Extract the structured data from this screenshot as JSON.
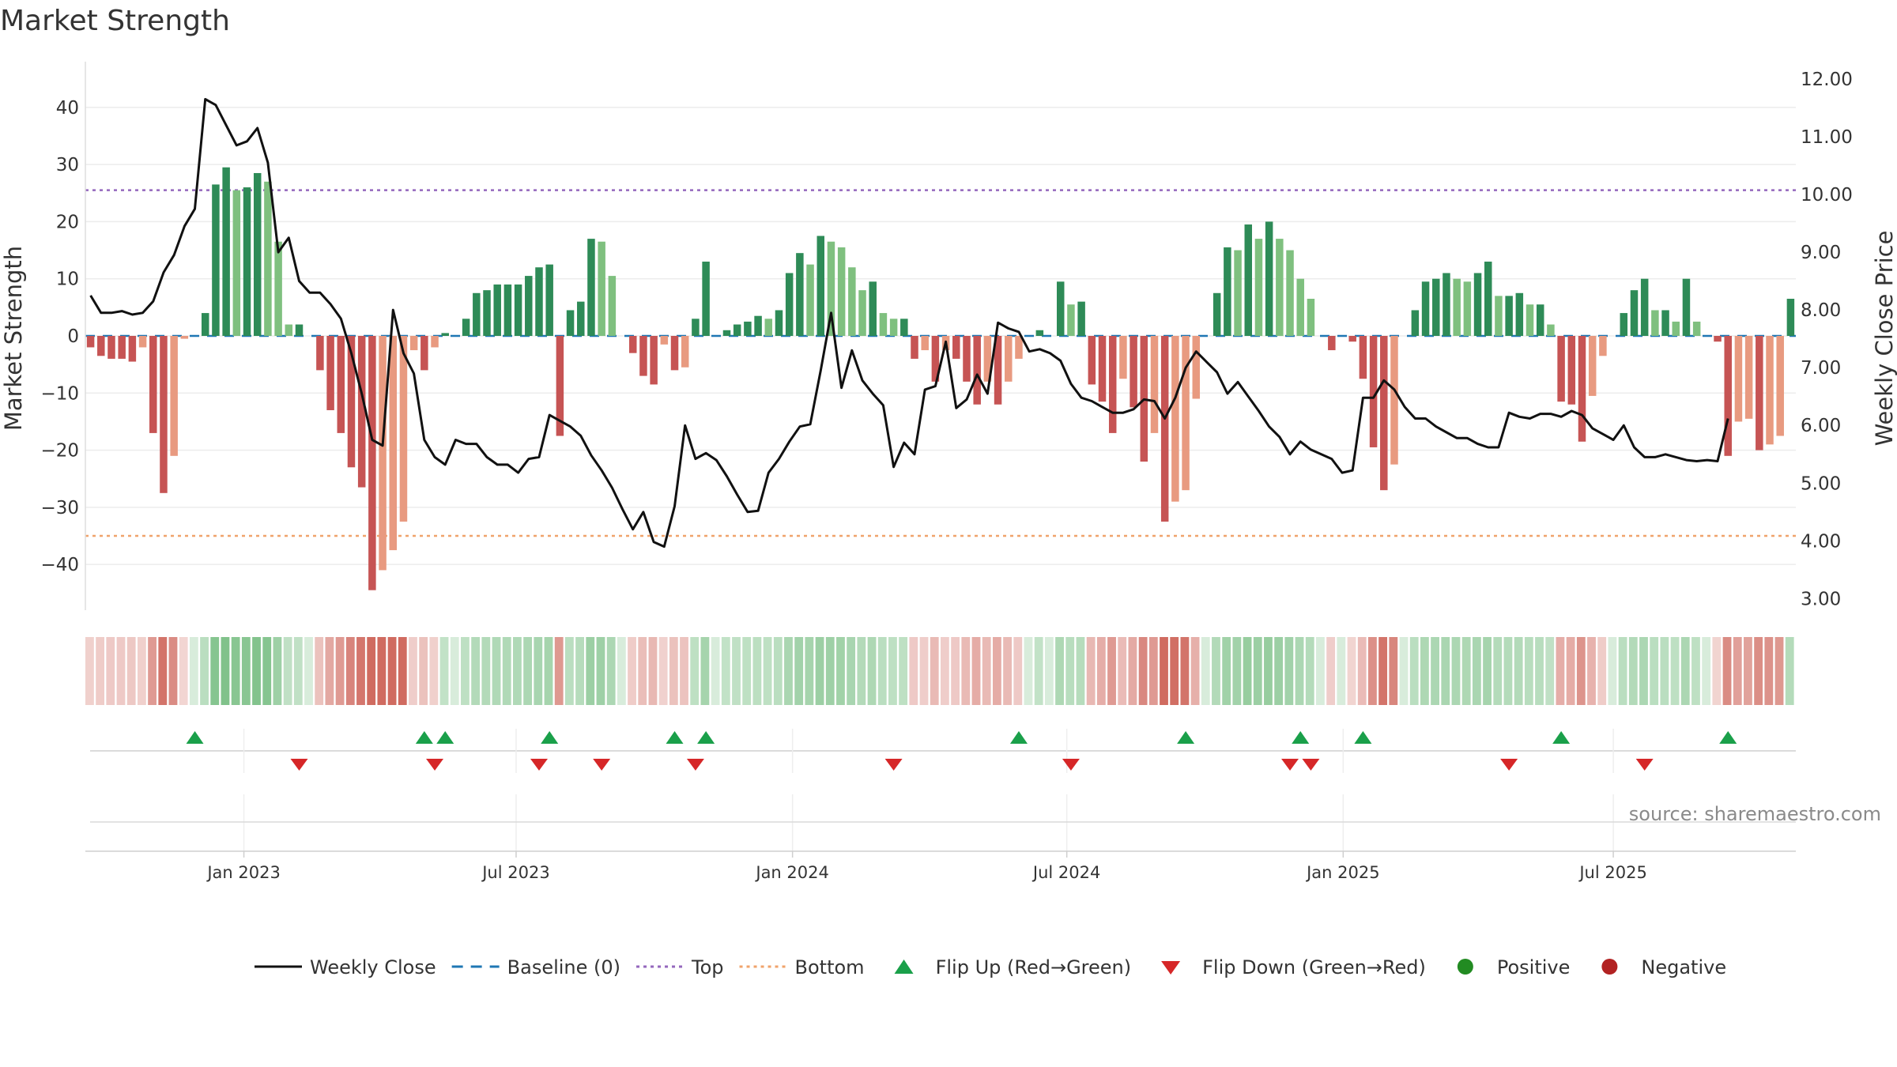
{
  "chart_data": {
    "type": "bar+line",
    "title": "Market Strength",
    "ylabel_left": "Market Strength",
    "ylabel_right": "Weekly Close Price",
    "ylim_left": [
      -48,
      48
    ],
    "ylim_right": [
      2.8,
      12.3
    ],
    "yticks_left": [
      -40,
      -30,
      -20,
      -10,
      0,
      10,
      20,
      30,
      40
    ],
    "ytick_labels_left": [
      "−40",
      "−30",
      "−20",
      "−10",
      "0",
      "10",
      "20",
      "30",
      "40"
    ],
    "yticks_right": [
      3,
      4,
      5,
      6,
      7,
      8,
      9,
      10,
      11,
      12
    ],
    "ytick_labels_right": [
      "3.00",
      "4.00",
      "5.00",
      "6.00",
      "7.00",
      "8.00",
      "9.00",
      "10.00",
      "11.00",
      "12.00"
    ],
    "x_start_week": 0,
    "x_end_week": 158,
    "xticks": [
      {
        "label": "Jan 2023",
        "week": 14.7
      },
      {
        "label": "Jul 2023",
        "week": 40.8
      },
      {
        "label": "Jan 2024",
        "week": 67.3
      },
      {
        "label": "Jul 2024",
        "week": 93.6
      },
      {
        "label": "Jan 2025",
        "week": 120.1
      },
      {
        "label": "Jul 2025",
        "week": 146.0
      }
    ],
    "top_level": 25.5,
    "bottom_level": -35,
    "baseline": 0,
    "strength": [
      -2,
      -3.5,
      -4,
      -4,
      -4.5,
      -2,
      -17,
      -27.5,
      -21,
      -0.5,
      0,
      4,
      26.5,
      29.5,
      25.5,
      26,
      28.5,
      27,
      16.5,
      2,
      2,
      0,
      -6,
      -13,
      -17,
      -23,
      -26.5,
      -44.5,
      -41,
      -37.5,
      -32.5,
      -2.5,
      -6,
      -2,
      0.5,
      0,
      3,
      7.5,
      8,
      9,
      9,
      9,
      10.5,
      12,
      12.5,
      -17.5,
      4.5,
      6,
      17,
      16.5,
      10.5,
      0,
      -3,
      -7,
      -8.5,
      -1.5,
      -6,
      -5.5,
      3,
      13,
      0,
      1,
      2,
      2.5,
      3.5,
      3,
      4.5,
      11,
      14.5,
      12.5,
      17.5,
      16.5,
      15.5,
      12,
      8,
      9.5,
      4,
      3,
      3,
      -4,
      -2.5,
      -8,
      -2.5,
      -4,
      -8,
      -12,
      -8,
      -12,
      -8,
      -4,
      0,
      1,
      0,
      9.5,
      5.5,
      6,
      -8.5,
      -11.5,
      -17,
      -7.5,
      -12.5,
      -22,
      -17,
      -32.5,
      -29,
      -27,
      -11,
      0,
      7.5,
      15.5,
      15,
      19.5,
      17,
      20,
      17,
      15,
      10,
      6.5,
      0,
      -2.5,
      0,
      -1,
      -7.5,
      -19.5,
      -27,
      -22.5,
      0,
      4.5,
      9.5,
      10,
      11,
      10,
      9.5,
      11,
      13,
      7,
      7,
      7.5,
      5.5,
      5.5,
      2,
      -11.5,
      -12,
      -18.5,
      -10.5,
      -3.5,
      0,
      4,
      8,
      10,
      4.5,
      4.5,
      2.5,
      10,
      2.5,
      0,
      -1,
      -21,
      -15,
      -14.5,
      -20,
      -19,
      -17.5,
      6.5
    ],
    "weekly_close": [
      8.25,
      7.95,
      7.95,
      7.98,
      7.92,
      7.95,
      8.15,
      8.65,
      8.95,
      9.45,
      9.75,
      11.65,
      11.55,
      11.2,
      10.85,
      10.92,
      11.15,
      10.55,
      9.0,
      9.25,
      8.5,
      8.3,
      8.3,
      8.1,
      7.85,
      7.25,
      6.55,
      5.75,
      5.65,
      8.0,
      7.25,
      6.9,
      5.75,
      5.45,
      5.32,
      5.75,
      5.68,
      5.68,
      5.45,
      5.32,
      5.32,
      5.18,
      5.42,
      5.45,
      6.18,
      6.08,
      5.98,
      5.82,
      5.48,
      5.22,
      4.92,
      4.55,
      4.2,
      4.5,
      3.98,
      3.9,
      4.6,
      6.0,
      5.42,
      5.52,
      5.4,
      5.12,
      4.8,
      4.5,
      4.52,
      5.18,
      5.42,
      5.72,
      5.98,
      6.02,
      6.95,
      7.95,
      6.65,
      7.3,
      6.78,
      6.55,
      6.35,
      5.28,
      5.7,
      5.5,
      6.62,
      6.68,
      7.45,
      6.3,
      6.45,
      6.88,
      6.55,
      7.78,
      7.68,
      7.62,
      7.28,
      7.32,
      7.25,
      7.12,
      6.72,
      6.48,
      6.42,
      6.32,
      6.22,
      6.22,
      6.28,
      6.45,
      6.42,
      6.12,
      6.48,
      7.0,
      7.28,
      7.1,
      6.92,
      6.55,
      6.75,
      6.5,
      6.25,
      5.98,
      5.8,
      5.5,
      5.72,
      5.58,
      5.5,
      5.42,
      5.18,
      5.22,
      6.48,
      6.48,
      6.78,
      6.62,
      6.32,
      6.12,
      6.12,
      5.98,
      5.88,
      5.78,
      5.78,
      5.68,
      5.62,
      5.62,
      6.22,
      6.15,
      6.12,
      6.2,
      6.2,
      6.15,
      6.25,
      6.18,
      5.95,
      5.85,
      5.75,
      6.0,
      5.62,
      5.45,
      5.45,
      5.5,
      5.45,
      5.4,
      5.38,
      5.4,
      5.38,
      6.12
    ],
    "flips": {
      "up_label": "Flip Up (Red→Green)",
      "down_label": "Flip Down (Green→Red)",
      "up_weeks": [
        10,
        32,
        34,
        44,
        56,
        59,
        89,
        105,
        116,
        122,
        141,
        157
      ],
      "down_weeks": [
        20,
        33,
        43,
        49,
        58,
        77,
        94,
        115,
        117,
        136,
        149
      ]
    },
    "colors": {
      "strong_green": "#2e8b57",
      "light_green": "#7fc07f",
      "strong_red": "#c65454",
      "light_red": "#e89a80",
      "baseline": "#1f77b4",
      "top": "#9467bd",
      "bottom": "#f0a36b",
      "line": "#111111",
      "flip_up": "#1aa04a",
      "flip_down": "#d62728",
      "positive": "#228b22",
      "negative": "#b22222",
      "source": "#8a8a8a"
    },
    "legend": [
      {
        "label": "Weekly Close",
        "kind": "line"
      },
      {
        "label": "Baseline (0)",
        "kind": "dash"
      },
      {
        "label": "Top",
        "kind": "dot"
      },
      {
        "label": "Bottom",
        "kind": "dot2"
      },
      {
        "label": "Flip Up (Red→Green)",
        "kind": "tri-up"
      },
      {
        "label": "Flip Down (Green→Red)",
        "kind": "tri-down"
      },
      {
        "label": "Positive",
        "kind": "circle-pos"
      },
      {
        "label": "Negative",
        "kind": "circle-neg"
      }
    ],
    "source": "source: sharemaestro.com"
  }
}
